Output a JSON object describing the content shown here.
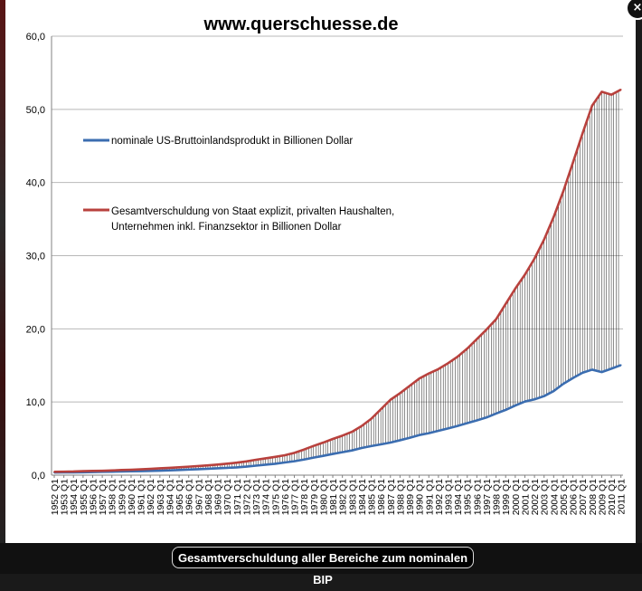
{
  "caption": "Gesamtverschuldung aller Bereiche zum nominalen BIP",
  "close_label": "×",
  "colors": {
    "gdp_line": "#3b6db0",
    "debt_line": "#b8413d",
    "hatch": "#000000",
    "gridline": "#b8b8b8"
  },
  "chart_data": {
    "type": "line",
    "title": "www.querschuesse.de",
    "xlabel": "",
    "ylabel": "",
    "ylim": [
      0,
      60
    ],
    "yticks": [
      "0,0",
      "10,0",
      "20,0",
      "30,0",
      "40,0",
      "50,0",
      "60,0"
    ],
    "x_categories": [
      "1952 Q1",
      "1953 Q1",
      "1954 Q1",
      "1955 Q1",
      "1956 Q1",
      "1957 Q1",
      "1958 Q1",
      "1959 Q1",
      "1960 Q1",
      "1961 Q1",
      "1962 Q1",
      "1963 Q1",
      "1964 Q1",
      "1965 Q1",
      "1966 Q1",
      "1967 Q1",
      "1968 Q1",
      "1969 Q1",
      "1970 Q1",
      "1971 Q1",
      "1972 Q1",
      "1973 Q1",
      "1974 Q1",
      "1975 Q1",
      "1976 Q1",
      "1977 Q1",
      "1978 Q1",
      "1979 Q1",
      "1980 Q1",
      "1981 Q1",
      "1982 Q1",
      "1983 Q1",
      "1984 Q1",
      "1985 Q1",
      "1986 Q1",
      "1987 Q1",
      "1988 Q1",
      "1989 Q1",
      "1990 Q1",
      "1991 Q1",
      "1992 Q1",
      "1993 Q1",
      "1994 Q1",
      "1995 Q1",
      "1996 Q1",
      "1997 Q1",
      "1998 Q1",
      "1999 Q1",
      "2000 Q1",
      "2001 Q1",
      "2002 Q1",
      "2003 Q1",
      "2004 Q1",
      "2005 Q1",
      "2006 Q1",
      "2007 Q1",
      "2008 Q1",
      "2009 Q1",
      "2010 Q1",
      "2011 Q1"
    ],
    "legend_position": "upper-left",
    "grid": true,
    "series": [
      {
        "name": "nominale US-Bruttoinlandsprodukt  in Billionen Dollar",
        "color": "#3b6db0",
        "values": [
          0.36,
          0.38,
          0.38,
          0.39,
          0.42,
          0.46,
          0.47,
          0.5,
          0.53,
          0.54,
          0.58,
          0.61,
          0.65,
          0.7,
          0.76,
          0.81,
          0.87,
          0.94,
          1.0,
          1.06,
          1.17,
          1.3,
          1.43,
          1.55,
          1.73,
          1.9,
          2.13,
          2.4,
          2.64,
          2.9,
          3.14,
          3.38,
          3.71,
          3.97,
          4.21,
          4.45,
          4.77,
          5.1,
          5.48,
          5.74,
          6.06,
          6.39,
          6.73,
          7.11,
          7.49,
          7.88,
          8.42,
          8.92,
          9.52,
          10.06,
          10.36,
          10.8,
          11.5,
          12.48,
          13.27,
          13.99,
          14.42,
          14.09,
          14.55,
          15.04
        ]
      },
      {
        "name": "Gesamtverschuldung von Staat  explizit, privalten Haushalten, Unternehmen inkl. Finanzsektor in Billionen Dollar",
        "color": "#b8413d",
        "values": [
          0.46,
          0.48,
          0.5,
          0.55,
          0.58,
          0.6,
          0.64,
          0.7,
          0.74,
          0.8,
          0.86,
          0.93,
          1.0,
          1.08,
          1.16,
          1.25,
          1.34,
          1.45,
          1.57,
          1.71,
          1.88,
          2.1,
          2.3,
          2.5,
          2.72,
          3.05,
          3.5,
          4.0,
          4.45,
          4.95,
          5.4,
          5.93,
          6.71,
          7.7,
          9.0,
          10.3,
          11.2,
          12.2,
          13.2,
          13.9,
          14.5,
          15.3,
          16.2,
          17.3,
          18.6,
          19.9,
          21.3,
          23.4,
          25.5,
          27.4,
          29.6,
          32.2,
          35.3,
          38.8,
          42.7,
          46.7,
          50.5,
          52.4,
          52.0,
          52.7
        ]
      }
    ]
  }
}
